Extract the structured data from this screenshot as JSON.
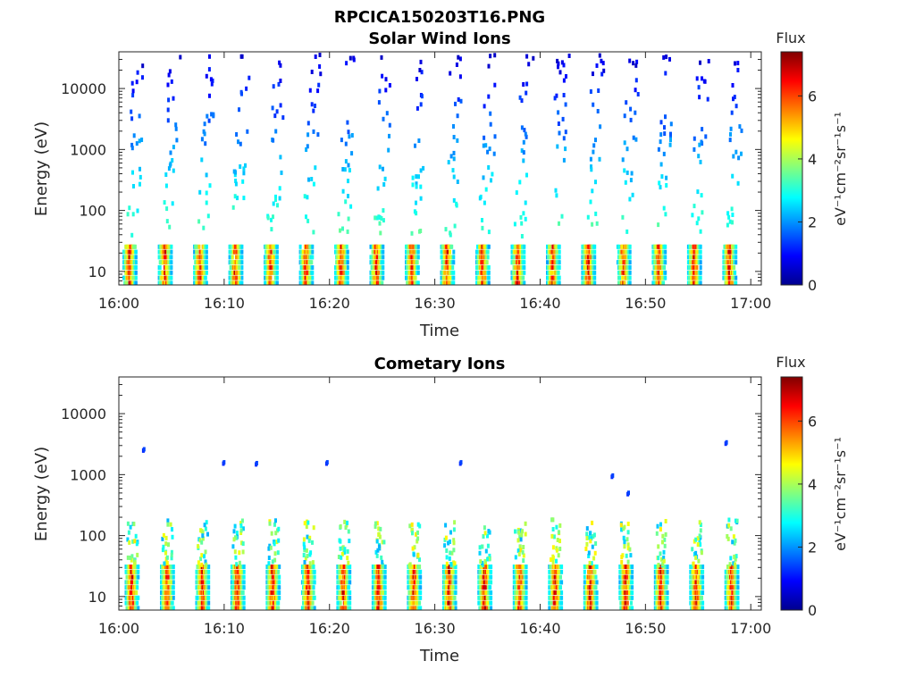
{
  "figure": {
    "filename_title": "RPCICA150203T16.PNG"
  },
  "chart_data": [
    {
      "type": "heatmap",
      "title": "Solar Wind Ions",
      "xlabel": "Time",
      "ylabel": "Energy (eV)",
      "x_range": [
        "16:00",
        "17:01"
      ],
      "x_ticks": [
        "16:00",
        "16:10",
        "16:20",
        "16:30",
        "16:40",
        "16:50",
        "17:00"
      ],
      "y_scale": "log",
      "y_range": [
        6,
        40000
      ],
      "y_ticks": [
        "10",
        "100",
        "1000",
        "10000"
      ],
      "colorbar": {
        "title": "Flux",
        "label": "eV⁻¹cm⁻²sr⁻¹s⁻¹",
        "range": [
          0,
          7.4
        ],
        "ticks": [
          "0",
          "2",
          "4",
          "6"
        ],
        "colormap": "jet"
      },
      "pattern": {
        "sweep_period_min": 3.35,
        "first_sweep_min": 0.9,
        "band_low_eV": [
          7,
          28
        ],
        "band_peak_flux": 7,
        "sparse_high_energy_counts": true,
        "sparse_max_eV": 40000
      }
    },
    {
      "type": "heatmap",
      "title": "Cometary Ions",
      "xlabel": "Time",
      "ylabel": "Energy (eV)",
      "x_range": [
        "16:00",
        "17:01"
      ],
      "x_ticks": [
        "16:00",
        "16:10",
        "16:20",
        "16:30",
        "16:40",
        "16:50",
        "17:00"
      ],
      "y_scale": "log",
      "y_range": [
        6,
        40000
      ],
      "y_ticks": [
        "10",
        "100",
        "1000",
        "10000"
      ],
      "colorbar": {
        "title": "Flux",
        "label": "eV⁻¹cm⁻²sr⁻¹s⁻¹",
        "range": [
          0,
          7.4
        ],
        "ticks": [
          "0",
          "2",
          "4",
          "6"
        ],
        "colormap": "jet"
      },
      "pattern": {
        "sweep_period_min": 3.35,
        "first_sweep_min": 1.1,
        "band_low_eV": [
          7,
          35
        ],
        "band_peak_flux": 7.2,
        "tail_max_eV": 200,
        "isolated_points": [
          {
            "t_min": 2.2,
            "eV": 2700
          },
          {
            "t_min": 9.8,
            "eV": 1650
          },
          {
            "t_min": 12.9,
            "eV": 1600
          },
          {
            "t_min": 19.6,
            "eV": 1650
          },
          {
            "t_min": 32.3,
            "eV": 1650
          },
          {
            "t_min": 46.7,
            "eV": 1000
          },
          {
            "t_min": 48.2,
            "eV": 520
          },
          {
            "t_min": 57.5,
            "eV": 3500
          }
        ]
      }
    }
  ]
}
